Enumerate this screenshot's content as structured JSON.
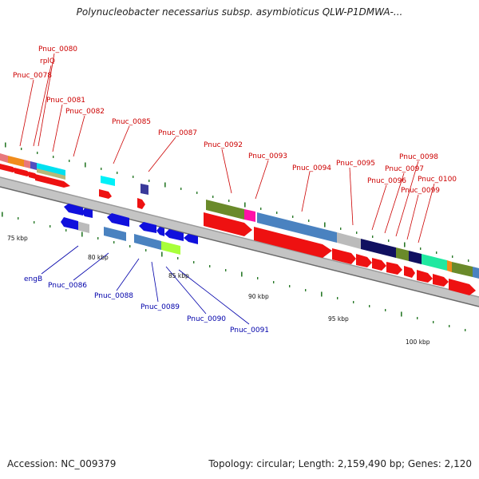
{
  "header": {
    "title": "Polynucleobacter necessarius subsp. asymbioticus QLW-P1DMWA-..."
  },
  "footer": {
    "accession": "Accession: NC_009379",
    "summary": "Topology: circular; Length: 2,159,490 bp; Genes: 2,120"
  },
  "map": {
    "scale_labels": [
      "75 kbp",
      "80 kbp",
      "85 kbp",
      "90 kbp",
      "95 kbp",
      "100 kbp"
    ],
    "forward_gene_labels": [
      "Pnuc_0080",
      "rplQ",
      "Pnuc_0078",
      "Pnuc_0081",
      "Pnuc_0082",
      "Pnuc_0085",
      "Pnuc_0087",
      "Pnuc_0092",
      "Pnuc_0093",
      "Pnuc_0094",
      "Pnuc_0095",
      "Pnuc_0096",
      "Pnuc_0097",
      "Pnuc_0098",
      "Pnuc_0099",
      "Pnuc_0100"
    ],
    "reverse_gene_labels": [
      "engB",
      "Pnuc_0086",
      "Pnuc_0088",
      "Pnuc_0089",
      "Pnuc_0090",
      "Pnuc_0091"
    ],
    "colors": {
      "forward_label": "#cc0000",
      "reverse_label": "#0000aa",
      "forward_cds": "#ee0000",
      "reverse_cds": "#0000dd",
      "backbone": "#888888",
      "tick": "#2a7a2a"
    }
  }
}
